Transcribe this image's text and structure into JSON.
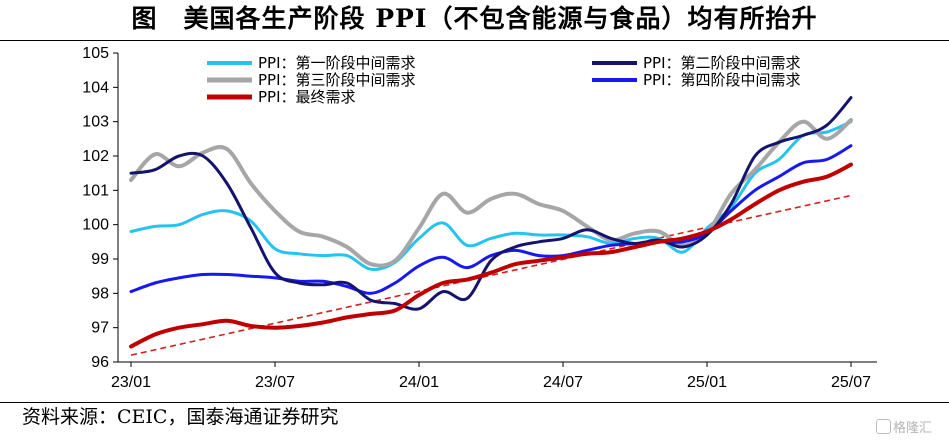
{
  "title": "图　美国各生产阶段 PPI（不包含能源与食品）均有所抬升",
  "source": "资料来源：CEIC，国泰海通证券研究",
  "watermark": "格隆汇",
  "colors": {
    "light_blue": "#27c3f0",
    "dark_navy": "#14146e",
    "grey": "#a6a6a6",
    "blue": "#1818f0",
    "red": "#c00000",
    "trend_red": "#d42020"
  },
  "chart_data": {
    "type": "line",
    "title": "美国各生产阶段 PPI（不包含能源与食品）均有所抬升",
    "xlabel": "",
    "ylabel": "",
    "ylim": [
      96,
      105
    ],
    "yticks": [
      96,
      97,
      98,
      99,
      100,
      101,
      102,
      103,
      104,
      105
    ],
    "x_range": [
      0,
      30.5
    ],
    "xticks": [
      {
        "label": "23/01",
        "pos": 0
      },
      {
        "label": "23/07",
        "pos": 6
      },
      {
        "label": "24/01",
        "pos": 12
      },
      {
        "label": "24/07",
        "pos": 18
      },
      {
        "label": "25/01",
        "pos": 24
      },
      {
        "label": "25/07",
        "pos": 30
      }
    ],
    "grid": false,
    "legend_position": "top",
    "series": [
      {
        "name": "PPI：第一阶段中间需求",
        "color": "#27c3f0",
        "width": 3,
        "x": [
          0,
          1,
          2,
          3,
          4,
          5,
          6,
          7,
          8,
          9,
          10,
          11,
          12,
          13,
          14,
          15,
          16,
          17,
          18,
          19,
          20,
          21,
          22,
          23,
          24,
          25,
          26,
          27,
          28,
          29,
          30
        ],
        "values": [
          99.8,
          99.95,
          100.0,
          100.3,
          100.4,
          100.1,
          99.3,
          99.15,
          99.1,
          99.1,
          98.7,
          98.9,
          99.6,
          100.05,
          99.4,
          99.6,
          99.75,
          99.7,
          99.7,
          99.65,
          99.45,
          99.6,
          99.6,
          99.2,
          99.9,
          100.5,
          101.5,
          101.9,
          102.6,
          102.7,
          103.0
        ]
      },
      {
        "name": "PPI：第二阶段中间需求",
        "color": "#14146e",
        "width": 3,
        "x": [
          0,
          1,
          2,
          3,
          4,
          5,
          6,
          7,
          8,
          9,
          10,
          11,
          12,
          13,
          14,
          15,
          16,
          17,
          18,
          19,
          20,
          21,
          22,
          23,
          24,
          25,
          26,
          27,
          28,
          29,
          30
        ],
        "values": [
          101.5,
          101.6,
          102.0,
          102.0,
          101.2,
          99.9,
          98.6,
          98.3,
          98.25,
          98.3,
          97.8,
          97.7,
          97.55,
          98.05,
          97.85,
          98.95,
          99.35,
          99.5,
          99.6,
          99.85,
          99.6,
          99.45,
          99.55,
          99.35,
          99.7,
          100.6,
          102.0,
          102.4,
          102.6,
          102.9,
          103.7
        ]
      },
      {
        "name": "PPI：第三阶段中间需求",
        "color": "#a6a6a6",
        "width": 4,
        "x": [
          0,
          1,
          2,
          3,
          4,
          5,
          6,
          7,
          8,
          9,
          10,
          11,
          12,
          13,
          14,
          15,
          16,
          17,
          18,
          19,
          20,
          21,
          22,
          23,
          24,
          25,
          26,
          27,
          28,
          29,
          30
        ],
        "values": [
          101.3,
          102.05,
          101.7,
          102.1,
          102.2,
          101.2,
          100.4,
          99.8,
          99.65,
          99.35,
          98.85,
          98.95,
          99.9,
          100.9,
          100.35,
          100.75,
          100.9,
          100.6,
          100.4,
          99.95,
          99.55,
          99.75,
          99.8,
          99.4,
          99.75,
          100.9,
          101.6,
          102.4,
          103.0,
          102.5,
          103.05
        ]
      },
      {
        "name": "PPI：第四阶段中间需求",
        "color": "#1818f0",
        "width": 3,
        "x": [
          0,
          1,
          2,
          3,
          4,
          5,
          6,
          7,
          8,
          9,
          10,
          11,
          12,
          13,
          14,
          15,
          16,
          17,
          18,
          19,
          20,
          21,
          22,
          23,
          24,
          25,
          26,
          27,
          28,
          29,
          30
        ],
        "values": [
          98.05,
          98.3,
          98.45,
          98.55,
          98.55,
          98.5,
          98.45,
          98.35,
          98.35,
          98.2,
          98.0,
          98.3,
          98.8,
          99.05,
          98.75,
          99.1,
          99.25,
          99.1,
          99.1,
          99.25,
          99.4,
          99.45,
          99.5,
          99.5,
          99.75,
          100.4,
          101.0,
          101.4,
          101.8,
          101.9,
          102.3
        ]
      },
      {
        "name": "PPI：最终需求",
        "color": "#c00000",
        "width": 4,
        "x": [
          0,
          1,
          2,
          3,
          4,
          5,
          6,
          7,
          8,
          9,
          10,
          11,
          12,
          13,
          14,
          15,
          16,
          17,
          18,
          19,
          20,
          21,
          22,
          23,
          24,
          25,
          26,
          27,
          28,
          29,
          30
        ],
        "values": [
          96.45,
          96.8,
          97.0,
          97.1,
          97.2,
          97.05,
          97.0,
          97.05,
          97.15,
          97.3,
          97.4,
          97.5,
          97.95,
          98.3,
          98.4,
          98.6,
          98.85,
          98.95,
          99.05,
          99.15,
          99.2,
          99.35,
          99.5,
          99.6,
          99.8,
          100.15,
          100.6,
          101.0,
          101.25,
          101.4,
          101.75
        ]
      }
    ],
    "trend_line": {
      "x": [
        0,
        30
      ],
      "values": [
        96.2,
        100.85
      ],
      "style": "dashed",
      "color": "#d42020"
    }
  }
}
